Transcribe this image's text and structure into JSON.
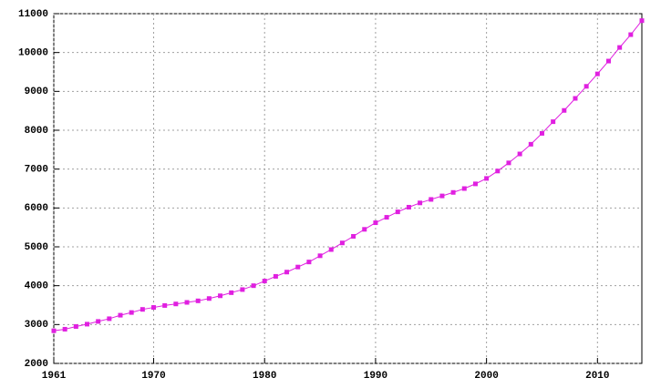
{
  "chart_data": {
    "type": "line",
    "x": [
      1961,
      1962,
      1963,
      1964,
      1965,
      1966,
      1967,
      1968,
      1969,
      1970,
      1971,
      1972,
      1973,
      1974,
      1975,
      1976,
      1977,
      1978,
      1979,
      1980,
      1981,
      1982,
      1983,
      1984,
      1985,
      1986,
      1987,
      1988,
      1989,
      1990,
      1991,
      1992,
      1993,
      1994,
      1995,
      1996,
      1997,
      1998,
      1999,
      2000,
      2001,
      2002,
      2003,
      2004,
      2005,
      2006,
      2007,
      2008,
      2009,
      2010,
      2011,
      2012,
      2013,
      2014
    ],
    "series": [
      {
        "color": "#e020e0",
        "values": [
          2840,
          2880,
          2950,
          3010,
          3080,
          3150,
          3240,
          3310,
          3390,
          3440,
          3490,
          3530,
          3570,
          3610,
          3670,
          3740,
          3820,
          3900,
          4000,
          4120,
          4240,
          4350,
          4480,
          4610,
          4770,
          4930,
          5100,
          5270,
          5450,
          5620,
          5760,
          5900,
          6020,
          6130,
          6220,
          6310,
          6400,
          6500,
          6620,
          6760,
          6950,
          7160,
          7390,
          7640,
          7920,
          8220,
          8510,
          8820,
          9130,
          9450,
          9780,
          10130,
          10460,
          10820
        ]
      }
    ],
    "xlim": [
      1961,
      2014
    ],
    "xticks": [
      1961,
      1970,
      1980,
      1990,
      2000,
      2010
    ],
    "ylim": [
      2000,
      11000
    ],
    "yticks": [
      2000,
      3000,
      4000,
      5000,
      6000,
      7000,
      8000,
      9000,
      10000,
      11000
    ],
    "grid": true
  }
}
